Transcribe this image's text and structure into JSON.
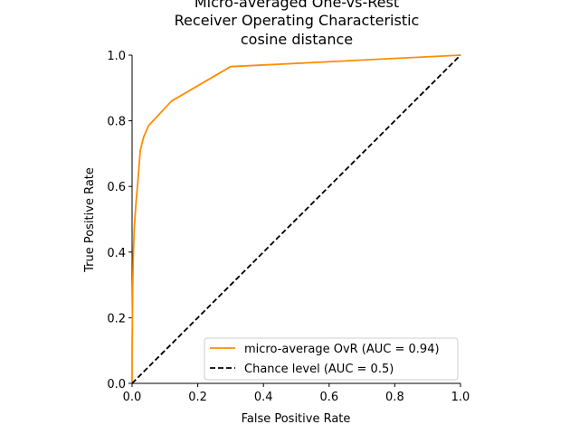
{
  "chart_data": {
    "type": "line",
    "title_lines": [
      "Micro-averaged One-vs-Rest",
      "Receiver Operating Characteristic",
      "cosine distance"
    ],
    "xlabel": "False Positive Rate",
    "ylabel": "True Positive Rate",
    "xlim": [
      0,
      1
    ],
    "ylim": [
      0,
      1
    ],
    "xticks": [
      "0.0",
      "0.2",
      "0.4",
      "0.6",
      "0.8",
      "1.0"
    ],
    "yticks": [
      "0.0",
      "0.2",
      "0.4",
      "0.6",
      "0.8",
      "1.0"
    ],
    "grid": false,
    "legend_position": "lower-right",
    "series": [
      {
        "name": "micro-average OvR (AUC = 0.94)",
        "color": "#ff8c00",
        "style": "solid",
        "x": [
          0.0,
          0.0,
          0.001,
          0.002,
          0.004,
          0.007,
          0.012,
          0.018,
          0.025,
          0.035,
          0.05,
          0.12,
          0.3,
          1.0
        ],
        "y": [
          0.0,
          0.1,
          0.2,
          0.3,
          0.4,
          0.48,
          0.55,
          0.62,
          0.71,
          0.75,
          0.785,
          0.86,
          0.965,
          1.0
        ]
      },
      {
        "name": "Chance level (AUC = 0.5)",
        "color": "#000000",
        "style": "dashed",
        "x": [
          0,
          1
        ],
        "y": [
          0,
          1
        ]
      }
    ]
  }
}
